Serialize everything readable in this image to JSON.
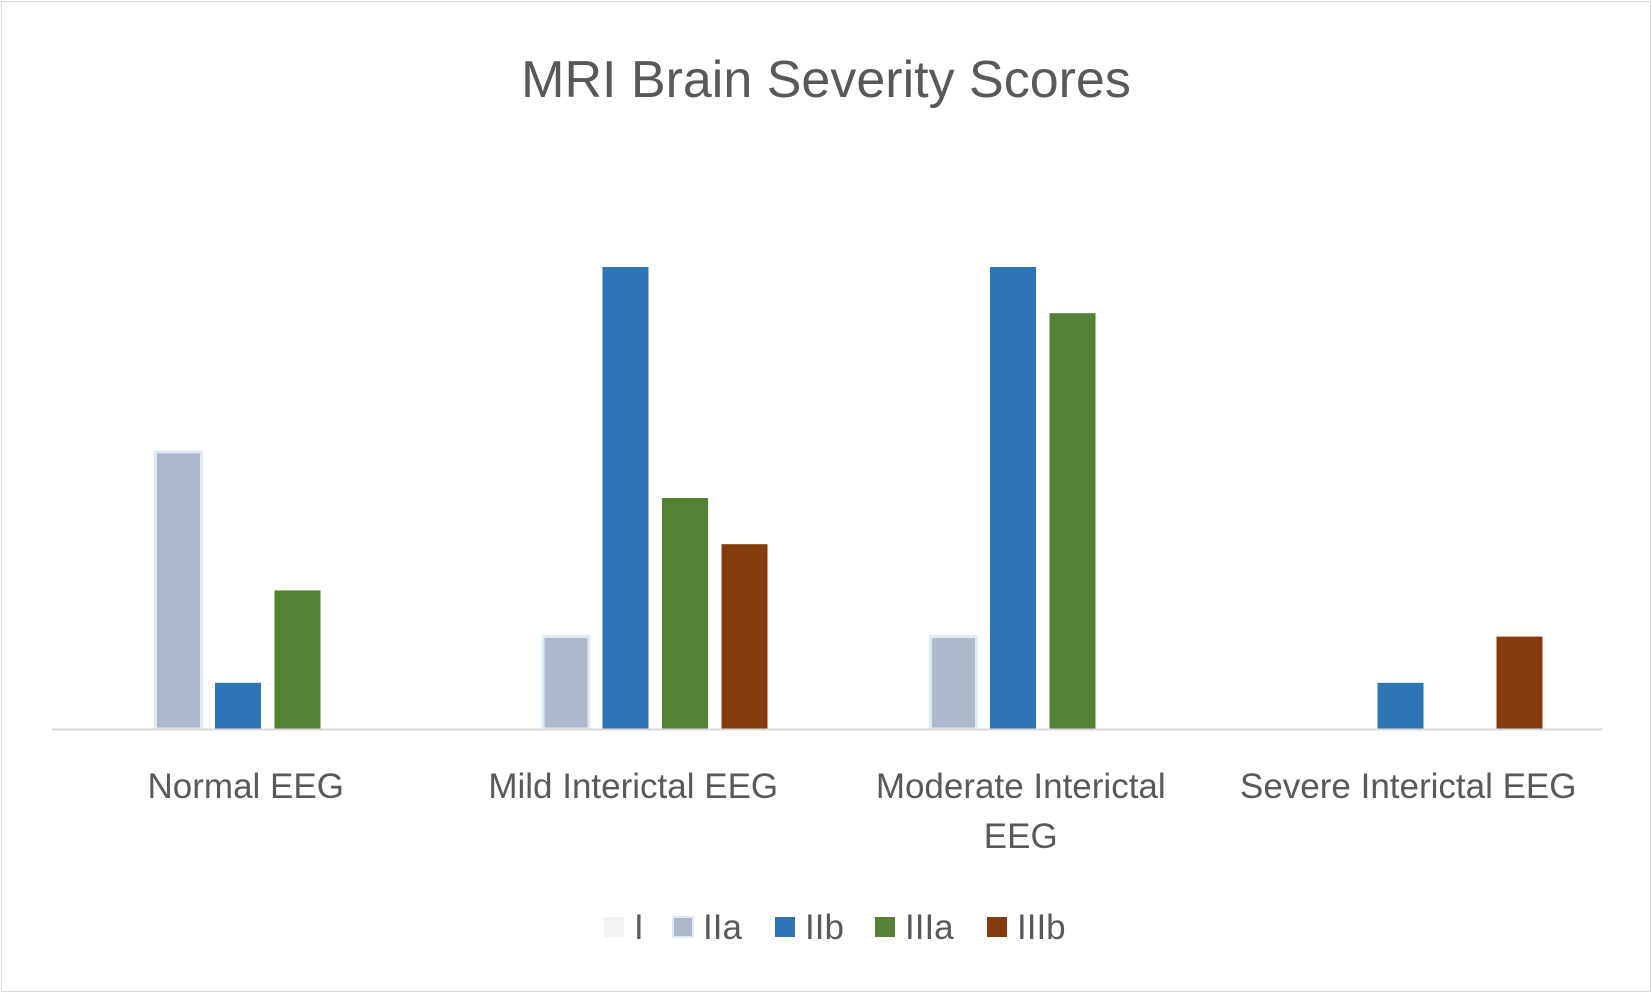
{
  "chart_data": {
    "type": "bar",
    "title": "MRI Brain Severity Scores",
    "xlabel": "",
    "ylabel": "",
    "ylim": [
      0,
      10
    ],
    "grid": false,
    "legend_position": "bottom",
    "categories": [
      [
        "Normal EEG"
      ],
      [
        "Mild Interictal EEG"
      ],
      [
        "Moderate Interictal",
        "EEG"
      ],
      [
        "Severe Interictal EEG"
      ]
    ],
    "series": [
      {
        "name": "I",
        "color": "#f2f2f2",
        "values": [
          0,
          0,
          0,
          0
        ]
      },
      {
        "name": "IIa",
        "color": "#adb9ca",
        "values": [
          6,
          2,
          2,
          0
        ]
      },
      {
        "name": "IIb",
        "color": "#2e75b6",
        "values": [
          1,
          10,
          10,
          1
        ]
      },
      {
        "name": "IIIa",
        "color": "#548235",
        "values": [
          3,
          5,
          9,
          0
        ]
      },
      {
        "name": "IIIb",
        "color": "#843c0c",
        "values": [
          0,
          4,
          0,
          2
        ]
      }
    ]
  }
}
